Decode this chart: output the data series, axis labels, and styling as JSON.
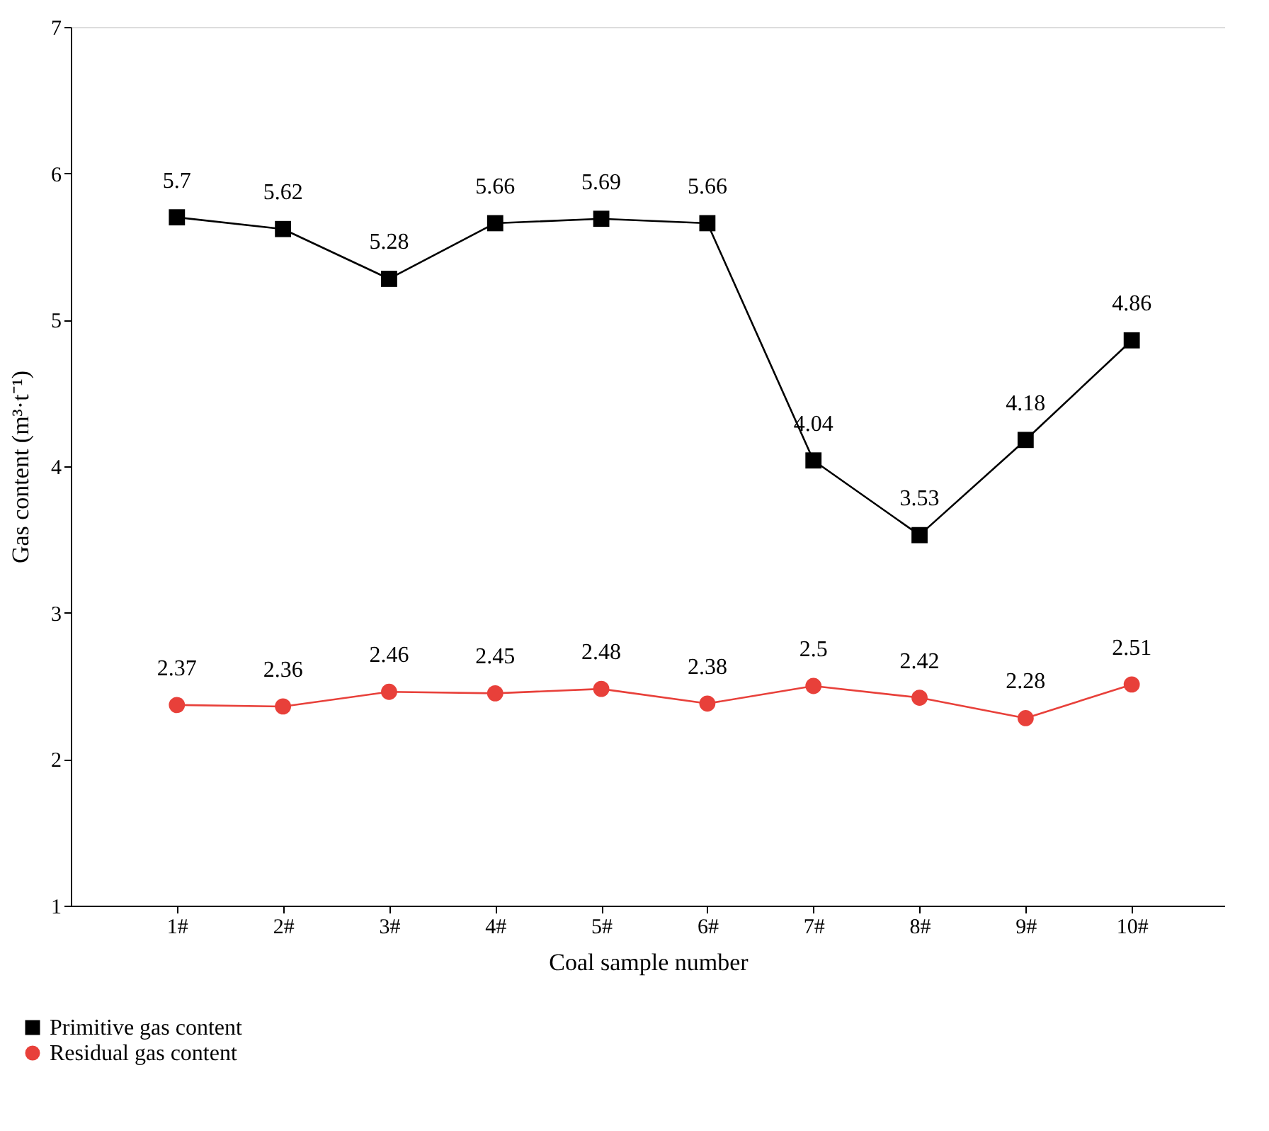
{
  "chart_data": {
    "type": "line",
    "xlabel": "Coal sample number",
    "ylabel": "Gas content (m³·t⁻¹)",
    "categories": [
      "1#",
      "2#",
      "3#",
      "4#",
      "5#",
      "6#",
      "7#",
      "8#",
      "9#",
      "10#"
    ],
    "series": [
      {
        "name": "Primitive gas content",
        "color": "#000000",
        "marker": "square",
        "values": [
          5.7,
          5.62,
          5.28,
          5.66,
          5.69,
          5.66,
          4.04,
          3.53,
          4.18,
          4.86
        ]
      },
      {
        "name": "Residual gas content",
        "color": "#e8403a",
        "marker": "circle",
        "values": [
          2.37,
          2.36,
          2.46,
          2.45,
          2.48,
          2.38,
          2.5,
          2.42,
          2.28,
          2.51
        ]
      }
    ],
    "ylim": [
      1,
      7
    ],
    "yticks": [
      1,
      2,
      3,
      4,
      5,
      6,
      7
    ],
    "grid": false,
    "legend": "bottom left",
    "data_labels": true
  }
}
